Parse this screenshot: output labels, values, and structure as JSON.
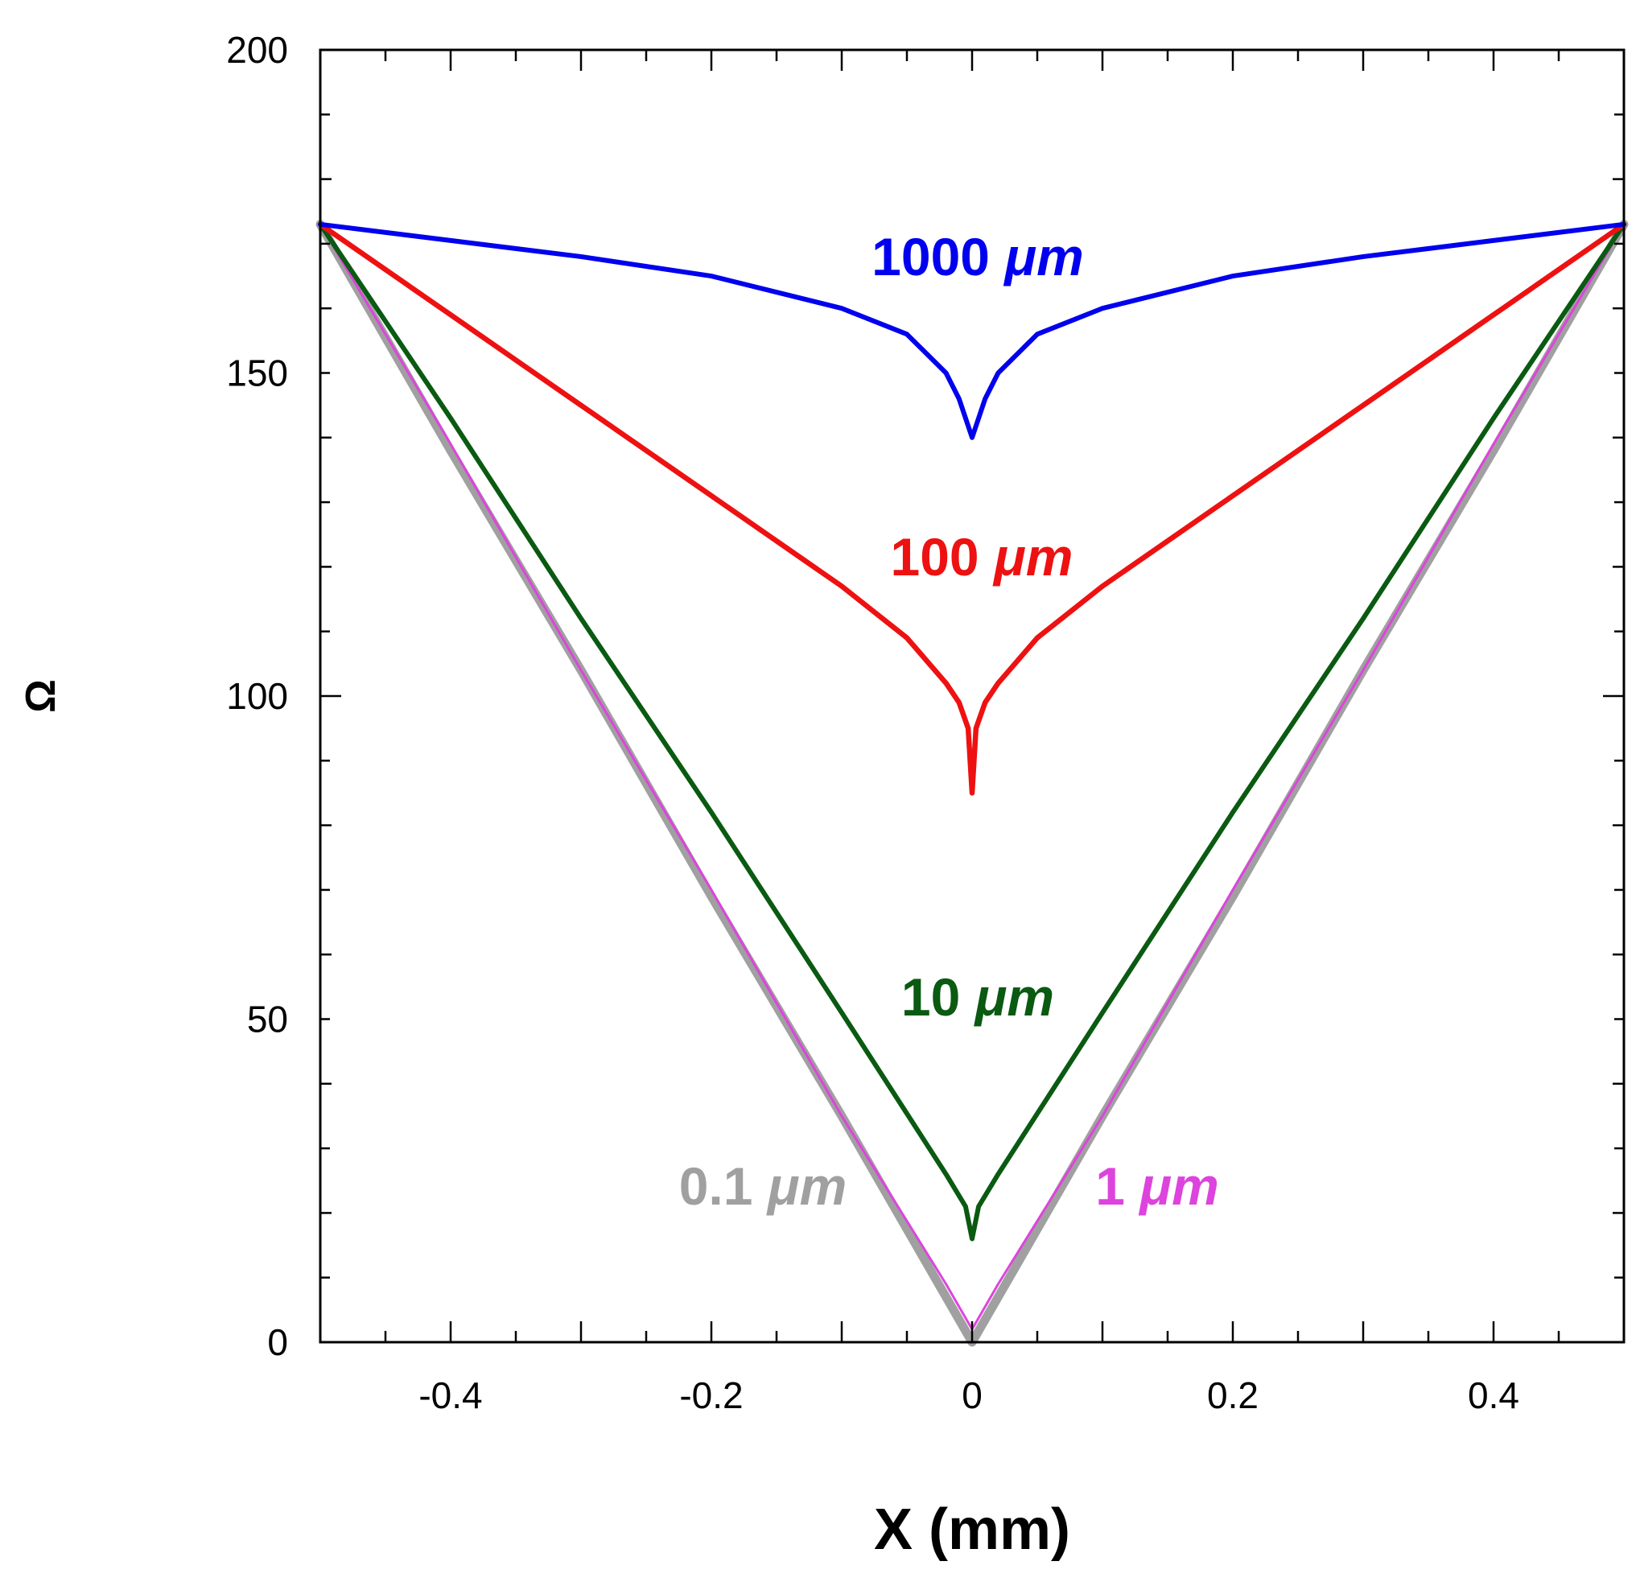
{
  "chart_data": {
    "type": "line",
    "title": "",
    "xlabel": "X (mm)",
    "ylabel": "Ω",
    "xlim": [
      -0.5,
      0.5
    ],
    "ylim": [
      0,
      200
    ],
    "xticks": [
      -0.4,
      -0.2,
      0,
      0.2,
      0.4
    ],
    "xtick_labels": [
      "-0.4",
      "-0.2",
      "0",
      "0.2",
      "0.4"
    ],
    "yticks": [
      0,
      50,
      100,
      150,
      200
    ],
    "ytick_labels": [
      "0",
      "50",
      "100",
      "150",
      "200"
    ],
    "grid": false,
    "series": [
      {
        "name": "1000 μm",
        "label_number": "1000",
        "label_unit": "μm",
        "color": "#0000ee",
        "x": [
          -0.5,
          -0.4,
          -0.3,
          -0.2,
          -0.1,
          -0.05,
          -0.02,
          -0.01,
          0,
          0.01,
          0.02,
          0.05,
          0.1,
          0.2,
          0.3,
          0.4,
          0.5
        ],
        "y": [
          173,
          170.5,
          168,
          165,
          160,
          156,
          150,
          146,
          140,
          146,
          150,
          156,
          160,
          165,
          168,
          170.5,
          173
        ]
      },
      {
        "name": "100 μm",
        "label_number": "100",
        "label_unit": "μm",
        "color": "#ee1111",
        "x": [
          -0.5,
          -0.4,
          -0.3,
          -0.2,
          -0.1,
          -0.05,
          -0.02,
          -0.01,
          -0.003,
          0,
          0.003,
          0.01,
          0.02,
          0.05,
          0.1,
          0.2,
          0.3,
          0.4,
          0.5
        ],
        "y": [
          173,
          159,
          145,
          131,
          117,
          109,
          102,
          99,
          95,
          85,
          95,
          99,
          102,
          109,
          117,
          131,
          145,
          159,
          173
        ]
      },
      {
        "name": "10 μm",
        "label_number": "10",
        "label_unit": "μm",
        "color": "#0a5a12",
        "x": [
          -0.5,
          -0.4,
          -0.3,
          -0.2,
          -0.1,
          -0.02,
          -0.005,
          0,
          0.005,
          0.02,
          0.1,
          0.2,
          0.3,
          0.4,
          0.5
        ],
        "y": [
          173,
          143,
          112,
          82,
          51,
          26,
          21,
          16,
          21,
          26,
          51,
          82,
          112,
          143,
          173
        ]
      },
      {
        "name": "1 μm",
        "label_number": "1",
        "label_unit": "μm",
        "color": "#dd44dd",
        "x": [
          -0.5,
          -0.4,
          -0.3,
          -0.2,
          -0.1,
          -0.02,
          0,
          0.02,
          0.1,
          0.2,
          0.3,
          0.4,
          0.5
        ],
        "y": [
          173,
          139,
          104,
          70,
          35,
          9,
          2,
          9,
          35,
          70,
          104,
          139,
          173
        ]
      },
      {
        "name": "0.1 μm",
        "label_number": "0.1",
        "label_unit": "μm",
        "color": "#a0a0a0",
        "x": [
          -0.5,
          -0.4,
          -0.3,
          -0.2,
          -0.1,
          0,
          0.1,
          0.2,
          0.3,
          0.4,
          0.5
        ],
        "y": [
          173,
          138,
          104,
          69,
          35,
          0,
          35,
          69,
          104,
          138,
          173
        ]
      }
    ]
  }
}
